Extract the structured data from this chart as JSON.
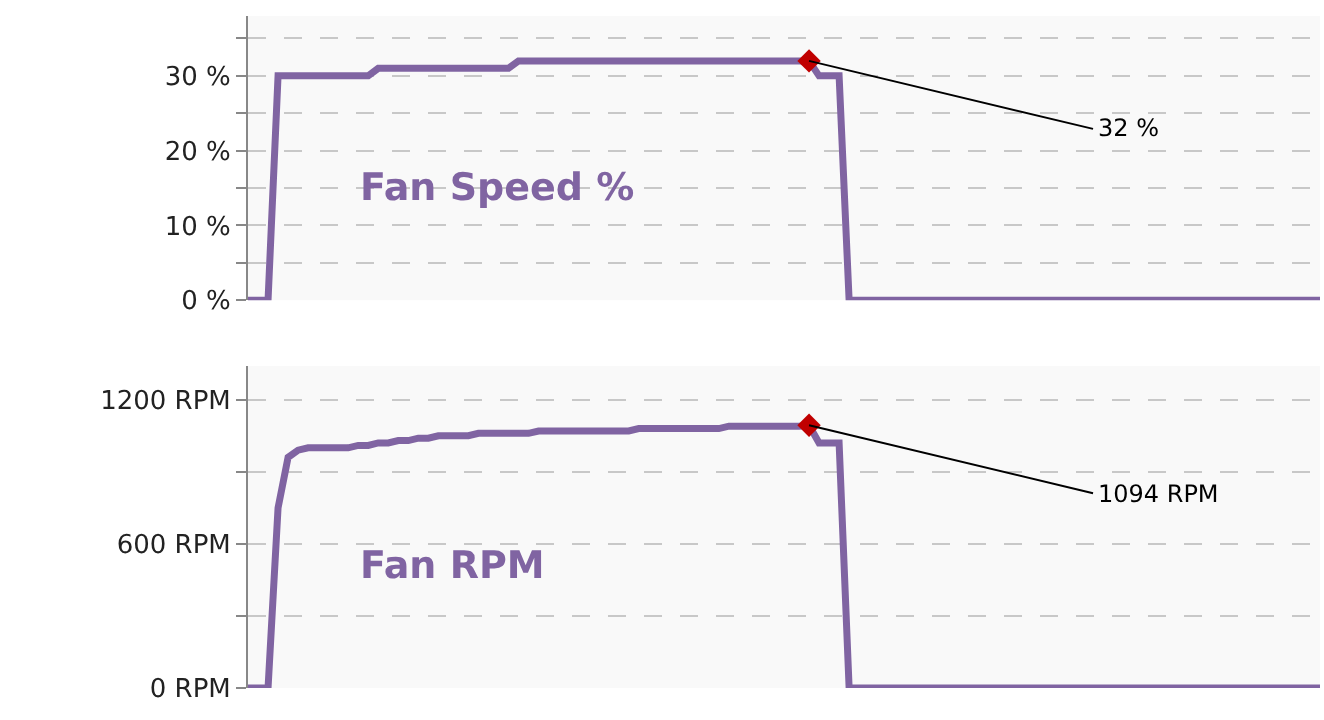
{
  "chart_data": [
    {
      "type": "line",
      "categories": [
        null,
        null,
        null,
        null,
        null,
        null,
        null,
        null,
        null,
        null,
        null,
        null,
        null,
        null,
        null,
        null,
        null,
        null,
        null,
        null,
        null,
        null,
        null,
        null,
        null,
        null,
        null,
        null,
        null,
        null,
        null,
        null,
        null,
        null,
        null,
        null,
        null,
        null,
        null,
        null,
        null,
        null,
        null,
        null,
        null,
        null,
        null,
        null,
        null,
        null,
        null,
        null,
        null,
        null,
        null,
        null,
        null,
        null,
        null,
        null,
        null,
        null,
        null,
        null,
        null,
        null,
        null,
        null,
        null,
        null,
        null,
        null,
        null,
        null,
        null,
        null,
        null,
        null,
        null,
        null,
        null,
        null,
        null,
        null,
        null,
        null,
        null,
        null,
        null,
        null,
        null,
        null,
        null,
        null,
        null,
        null,
        null,
        null,
        null,
        null,
        null,
        null,
        null,
        null,
        null,
        null,
        null,
        null
      ],
      "series": [
        {
          "name": "Fan Speed %",
          "color": "#8064a2",
          "values": [
            0,
            0,
            0,
            30,
            30,
            30,
            30,
            30,
            30,
            30,
            30,
            30,
            30,
            31,
            31,
            31,
            31,
            31,
            31,
            31,
            31,
            31,
            31,
            31,
            31,
            31,
            31,
            32,
            32,
            32,
            32,
            32,
            32,
            32,
            32,
            32,
            32,
            32,
            32,
            32,
            32,
            32,
            32,
            32,
            32,
            32,
            32,
            32,
            32,
            32,
            32,
            32,
            32,
            32,
            32,
            32,
            32,
            30,
            30,
            30,
            0,
            0,
            0,
            0,
            0,
            0,
            0,
            0,
            0,
            0,
            0,
            0,
            0,
            0,
            0,
            0,
            0,
            0,
            0,
            0,
            0,
            0,
            0,
            0,
            0,
            0,
            0,
            0,
            0,
            0,
            0,
            0,
            0,
            0,
            0,
            0,
            0,
            0,
            0,
            0,
            0,
            0,
            0,
            0,
            0,
            0,
            0,
            0
          ]
        },
        {
          "type": "scatter",
          "color": "#c00000",
          "marker": "diamond",
          "values": [
            null,
            null,
            null,
            null,
            null,
            null,
            null,
            null,
            null,
            null,
            null,
            null,
            null,
            null,
            null,
            null,
            null,
            null,
            null,
            null,
            null,
            null,
            null,
            null,
            null,
            null,
            null,
            null,
            null,
            null,
            null,
            null,
            null,
            null,
            null,
            null,
            null,
            null,
            null,
            null,
            null,
            null,
            null,
            null,
            null,
            null,
            null,
            null,
            null,
            null,
            null,
            null,
            null,
            null,
            null,
            null,
            32,
            null,
            null,
            null,
            null,
            null,
            null,
            null,
            null,
            null,
            null,
            null,
            null,
            null,
            null,
            null,
            null,
            null,
            null,
            null,
            null,
            null,
            null,
            null,
            null,
            null,
            null,
            null,
            null,
            null,
            null,
            null,
            null,
            null,
            null,
            null,
            null,
            null,
            null,
            null,
            null,
            null,
            null,
            null,
            null,
            null,
            null,
            null,
            null,
            null,
            null,
            null
          ]
        }
      ],
      "ylim": [
        0,
        38
      ],
      "yticks": [
        {
          "value": 0,
          "label": "0 %"
        },
        {
          "value": 5,
          "label": null
        },
        {
          "value": 10,
          "label": "10 %"
        },
        {
          "value": 15,
          "label": null
        },
        {
          "value": 20,
          "label": "20 %"
        },
        {
          "value": 25,
          "label": null
        },
        {
          "value": 30,
          "label": "30 %"
        },
        {
          "value": 35,
          "label": null
        }
      ],
      "grid": "y",
      "tick_labels": "y",
      "legend": false,
      "line_style": "solid",
      "annotations": [
        "32 %"
      ]
    },
    {
      "type": "line",
      "categories": [
        null,
        null,
        null,
        null,
        null,
        null,
        null,
        null,
        null,
        null,
        null,
        null,
        null,
        null,
        null,
        null,
        null,
        null,
        null,
        null,
        null,
        null,
        null,
        null,
        null,
        null,
        null,
        null,
        null,
        null,
        null,
        null,
        null,
        null,
        null,
        null,
        null,
        null,
        null,
        null,
        null,
        null,
        null,
        null,
        null,
        null,
        null,
        null,
        null,
        null,
        null,
        null,
        null,
        null,
        null,
        null,
        null,
        null,
        null,
        null,
        null,
        null,
        null,
        null,
        null,
        null,
        null,
        null,
        null,
        null,
        null,
        null,
        null,
        null,
        null,
        null,
        null,
        null,
        null,
        null,
        null,
        null,
        null,
        null,
        null,
        null,
        null,
        null,
        null,
        null,
        null,
        null,
        null,
        null,
        null,
        null,
        null,
        null,
        null,
        null,
        null,
        null,
        null,
        null,
        null,
        null,
        null,
        null
      ],
      "series": [
        {
          "name": "Fan RPM",
          "color": "#8064a2",
          "values": [
            0,
            0,
            0,
            750,
            960,
            990,
            1000,
            1000,
            1000,
            1000,
            1000,
            1010,
            1010,
            1020,
            1020,
            1030,
            1030,
            1040,
            1040,
            1050,
            1050,
            1050,
            1050,
            1060,
            1060,
            1060,
            1060,
            1060,
            1060,
            1070,
            1070,
            1070,
            1070,
            1070,
            1070,
            1070,
            1070,
            1070,
            1070,
            1080,
            1080,
            1080,
            1080,
            1080,
            1080,
            1080,
            1080,
            1080,
            1090,
            1090,
            1090,
            1090,
            1090,
            1090,
            1090,
            1090,
            1094,
            1020,
            1020,
            1020,
            0,
            0,
            0,
            0,
            0,
            0,
            0,
            0,
            0,
            0,
            0,
            0,
            0,
            0,
            0,
            0,
            0,
            0,
            0,
            0,
            0,
            0,
            0,
            0,
            0,
            0,
            0,
            0,
            0,
            0,
            0,
            0,
            0,
            0,
            0,
            0,
            0,
            0,
            0,
            0,
            0,
            0,
            0,
            0,
            0,
            0,
            0,
            0
          ]
        },
        {
          "type": "scatter",
          "color": "#c00000",
          "marker": "diamond",
          "values": [
            null,
            null,
            null,
            null,
            null,
            null,
            null,
            null,
            null,
            null,
            null,
            null,
            null,
            null,
            null,
            null,
            null,
            null,
            null,
            null,
            null,
            null,
            null,
            null,
            null,
            null,
            null,
            null,
            null,
            null,
            null,
            null,
            null,
            null,
            null,
            null,
            null,
            null,
            null,
            null,
            null,
            null,
            null,
            null,
            null,
            null,
            null,
            null,
            null,
            null,
            null,
            null,
            null,
            null,
            null,
            null,
            1094,
            null,
            null,
            null,
            null,
            null,
            null,
            null,
            null,
            null,
            null,
            null,
            null,
            null,
            null,
            null,
            null,
            null,
            null,
            null,
            null,
            null,
            null,
            null,
            null,
            null,
            null,
            null,
            null,
            null,
            null,
            null,
            null,
            null,
            null,
            null,
            null,
            null,
            null,
            null,
            null,
            null,
            null,
            null,
            null,
            null,
            null,
            null,
            null,
            null,
            null,
            null
          ]
        }
      ],
      "ylim": [
        0,
        1340
      ],
      "yticks": [
        {
          "value": 0,
          "label": "0 RPM"
        },
        {
          "value": 300,
          "label": null
        },
        {
          "value": 600,
          "label": "600 RPM"
        },
        {
          "value": 900,
          "label": null
        },
        {
          "value": 1200,
          "label": "1200 RPM"
        }
      ],
      "grid": "y",
      "tick_labels": "y",
      "legend": false,
      "line_style": "solid",
      "annotations": [
        "1094 RPM"
      ]
    }
  ]
}
